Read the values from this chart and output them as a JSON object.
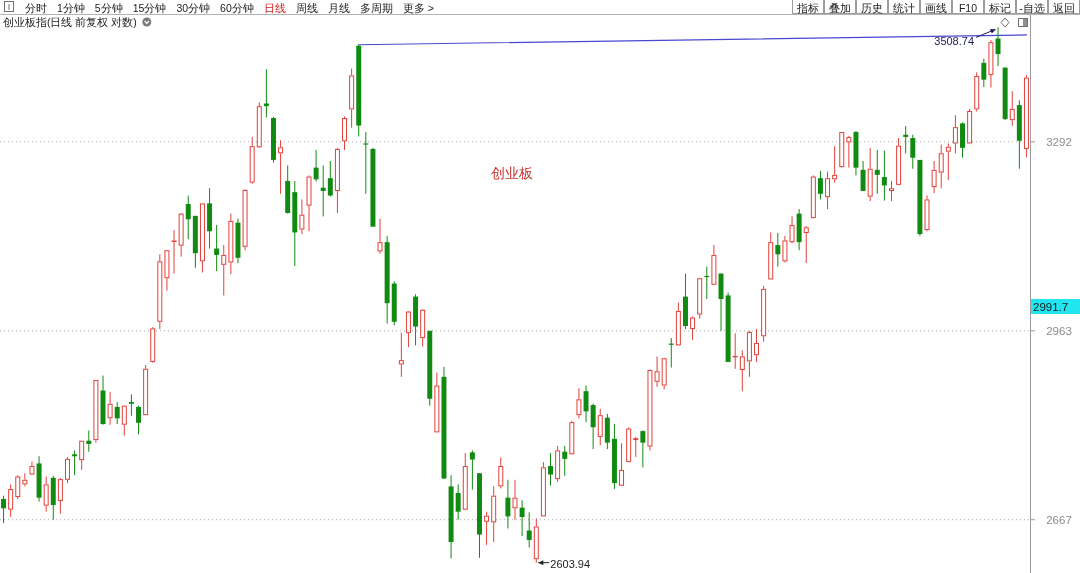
{
  "chart_data": {
    "type": "candlestick",
    "title": "创业板指(日线 前复权 对数)",
    "subtitle": "创业板",
    "categories": [
      null,
      null,
      null,
      null,
      null,
      null,
      null,
      null,
      null,
      null,
      null,
      null,
      null,
      null,
      null,
      null,
      null,
      null,
      null,
      null,
      null,
      null,
      null,
      null,
      null,
      null,
      null,
      null,
      null,
      null,
      null,
      null,
      null,
      null,
      null,
      null,
      null,
      null,
      null,
      null,
      null,
      null,
      null,
      null,
      null,
      null,
      null,
      null,
      null,
      null,
      null,
      null,
      null,
      null,
      null,
      null,
      null,
      null,
      null,
      null,
      null,
      null,
      null,
      null,
      null,
      null,
      null,
      null,
      null,
      null,
      null,
      null,
      null,
      null,
      null,
      null,
      null,
      null,
      null,
      null,
      null,
      null,
      null,
      null,
      null,
      null,
      null,
      null,
      null,
      null,
      null,
      null,
      null,
      null,
      null,
      null,
      null,
      null,
      null,
      null,
      null,
      null,
      null,
      null,
      null,
      null,
      null,
      null,
      null,
      null,
      null,
      null,
      null,
      null,
      null,
      null,
      null,
      null,
      null,
      null,
      null,
      null,
      null,
      null,
      null,
      null,
      null,
      null,
      null,
      null,
      null,
      null,
      null,
      null,
      null,
      null,
      null,
      null,
      null,
      null,
      null,
      null,
      null,
      null,
      null
    ],
    "ohlc": [
      [
        2698,
        2703,
        2662,
        2684
      ],
      [
        2682,
        2720,
        2671,
        2713
      ],
      [
        2701,
        2734,
        2698,
        2732
      ],
      [
        2720,
        2737,
        2717,
        2727
      ],
      [
        2735,
        2755,
        2734,
        2748
      ],
      [
        2752,
        2763,
        2694,
        2700
      ],
      [
        2688,
        2732,
        2679,
        2720
      ],
      [
        2730,
        2733,
        2667,
        2689
      ],
      [
        2695,
        2730,
        2676,
        2728
      ],
      [
        2727,
        2762,
        2722,
        2759
      ],
      [
        2766,
        2772,
        2734,
        2763
      ],
      [
        2757,
        2787,
        2742,
        2787
      ],
      [
        2787,
        2803,
        2770,
        2782
      ],
      [
        2788,
        2883,
        2784,
        2883
      ],
      [
        2866,
        2890,
        2812,
        2813
      ],
      [
        2822,
        2864,
        2812,
        2845
      ],
      [
        2840,
        2848,
        2813,
        2822
      ],
      [
        2812,
        2842,
        2795,
        2842
      ],
      [
        2848,
        2860,
        2826,
        2845
      ],
      [
        2840,
        2842,
        2797,
        2815
      ],
      [
        2827,
        2907,
        2827,
        2901
      ],
      [
        2912,
        2969,
        2911,
        2967
      ],
      [
        2978,
        3092,
        2966,
        3080
      ],
      [
        3051,
        3099,
        3030,
        3099
      ],
      [
        3115,
        3134,
        3059,
        3116
      ],
      [
        3107,
        3164,
        3088,
        3163
      ],
      [
        3180,
        3195,
        3118,
        3153
      ],
      [
        3159,
        3159,
        3069,
        3094
      ],
      [
        3080,
        3181,
        3061,
        3181
      ],
      [
        3181,
        3208,
        3102,
        3132
      ],
      [
        3102,
        3143,
        3063,
        3091
      ],
      [
        3074,
        3108,
        3022,
        3091
      ],
      [
        3078,
        3163,
        3058,
        3150
      ],
      [
        3147,
        3154,
        3077,
        3086
      ],
      [
        3105,
        3206,
        3099,
        3205
      ],
      [
        3218,
        3301,
        3216,
        3284
      ],
      [
        3282,
        3365,
        3281,
        3358
      ],
      [
        3363,
        3428,
        3337,
        3358
      ],
      [
        3336,
        3338,
        3254,
        3259
      ],
      [
        3271,
        3295,
        3198,
        3282
      ],
      [
        3221,
        3249,
        3163,
        3164
      ],
      [
        3201,
        3221,
        3072,
        3130
      ],
      [
        3135,
        3188,
        3127,
        3161
      ],
      [
        3177,
        3231,
        3132,
        3229
      ],
      [
        3245,
        3277,
        3220,
        3224
      ],
      [
        3209,
        3249,
        3158,
        3203
      ],
      [
        3226,
        3257,
        3193,
        3195
      ],
      [
        3203,
        3281,
        3164,
        3279
      ],
      [
        3293,
        3339,
        3277,
        3336
      ],
      [
        3352,
        3429,
        3318,
        3416
      ],
      [
        3473,
        3475,
        3302,
        3322
      ],
      [
        3289,
        3310,
        3198,
        3287
      ],
      [
        3279,
        3281,
        3140,
        3140
      ],
      [
        3097,
        3154,
        3093,
        3113
      ],
      [
        3113,
        3124,
        2975,
        3009
      ],
      [
        3042,
        3046,
        2972,
        2978
      ],
      [
        2908,
        2960,
        2888,
        2915
      ],
      [
        2959,
        2996,
        2936,
        2995
      ],
      [
        3020,
        3024,
        2939,
        2970
      ],
      [
        2951,
        2999,
        2937,
        2998
      ],
      [
        2963,
        2963,
        2842,
        2853
      ],
      [
        2800,
        2895,
        2800,
        2874
      ],
      [
        2888,
        2904,
        2728,
        2729
      ],
      [
        2717,
        2734,
        2610,
        2634
      ],
      [
        2707,
        2720,
        2667,
        2679
      ],
      [
        2682,
        2768,
        2681,
        2748
      ],
      [
        2769,
        2772,
        2712,
        2758
      ],
      [
        2737,
        2737,
        2611,
        2645
      ],
      [
        2664,
        2679,
        2630,
        2673
      ],
      [
        2663,
        2717,
        2634,
        2703
      ],
      [
        2717,
        2761,
        2714,
        2748
      ],
      [
        2700,
        2727,
        2654,
        2672
      ],
      [
        2684,
        2727,
        2667,
        2700
      ],
      [
        2685,
        2696,
        2643,
        2671
      ],
      [
        2651,
        2678,
        2626,
        2637
      ],
      [
        2609,
        2669,
        2603.94,
        2657
      ],
      [
        2672,
        2754,
        2672,
        2746
      ],
      [
        2748,
        2768,
        2718,
        2735
      ],
      [
        2728,
        2779,
        2724,
        2772
      ],
      [
        2770,
        2779,
        2733,
        2759
      ],
      [
        2766,
        2818,
        2766,
        2816
      ],
      [
        2827,
        2870,
        2822,
        2852
      ],
      [
        2865,
        2874,
        2816,
        2833
      ],
      [
        2843,
        2845,
        2774,
        2808
      ],
      [
        2793,
        2837,
        2780,
        2827
      ],
      [
        2823,
        2829,
        2774,
        2784
      ],
      [
        2790,
        2813,
        2713,
        2722
      ],
      [
        2718,
        2783,
        2718,
        2742
      ],
      [
        2754,
        2808,
        2754,
        2806
      ],
      [
        2788,
        2793,
        2762,
        2791
      ],
      [
        2802,
        2803,
        2746,
        2784
      ],
      [
        2778,
        2900,
        2772,
        2899
      ],
      [
        2880,
        2921,
        2872,
        2897
      ],
      [
        2874,
        2919,
        2868,
        2918
      ],
      [
        2942,
        2951,
        2903,
        2940
      ],
      [
        2939,
        3010,
        2939,
        2996
      ],
      [
        3020,
        3059,
        2966,
        2971
      ],
      [
        2966,
        2987,
        2948,
        2985
      ],
      [
        2990,
        3052,
        2983,
        3051
      ],
      [
        3055,
        3071,
        3016,
        3053
      ],
      [
        3040,
        3108,
        3040,
        3091
      ],
      [
        3059,
        3059,
        2963,
        3016
      ],
      [
        3022,
        3027,
        2912,
        2912
      ],
      [
        2920,
        2959,
        2901,
        2922
      ],
      [
        2899,
        2931,
        2865,
        2921
      ],
      [
        2913,
        2963,
        2888,
        2961
      ],
      [
        2923,
        2966,
        2912,
        2943
      ],
      [
        2954,
        3038,
        2945,
        3033
      ],
      [
        3049,
        3130,
        3049,
        3113
      ],
      [
        3108,
        3129,
        3071,
        3092
      ],
      [
        3080,
        3124,
        3078,
        3116
      ],
      [
        3113,
        3158,
        3111,
        3143
      ],
      [
        3163,
        3171,
        3099,
        3113
      ],
      [
        3129,
        3141,
        3077,
        3139
      ],
      [
        3155,
        3231,
        3155,
        3229
      ],
      [
        3226,
        3239,
        3188,
        3198
      ],
      [
        3192,
        3238,
        3171,
        3226
      ],
      [
        3224,
        3284,
        3218,
        3232
      ],
      [
        3246,
        3310,
        3245,
        3310
      ],
      [
        3291,
        3303,
        3245,
        3301
      ],
      [
        3310,
        3312,
        3231,
        3245
      ],
      [
        3241,
        3257,
        3203,
        3203
      ],
      [
        3193,
        3281,
        3185,
        3243
      ],
      [
        3241,
        3277,
        3198,
        3232
      ],
      [
        3228,
        3276,
        3186,
        3213
      ],
      [
        3203,
        3221,
        3185,
        3208
      ],
      [
        3214,
        3299,
        3214,
        3285
      ],
      [
        3305,
        3321,
        3271,
        3301
      ],
      [
        3299,
        3305,
        3243,
        3263
      ],
      [
        3259,
        3259,
        3124,
        3127
      ],
      [
        3134,
        3195,
        3132,
        3188
      ],
      [
        3210,
        3257,
        3199,
        3241
      ],
      [
        3236,
        3287,
        3208,
        3271
      ],
      [
        3274,
        3289,
        3223,
        3283
      ],
      [
        3289,
        3341,
        3271,
        3319
      ],
      [
        3326,
        3328,
        3263,
        3281
      ],
      [
        3289,
        3353,
        3289,
        3349
      ],
      [
        3352,
        3422,
        3348,
        3415
      ],
      [
        3440,
        3448,
        3394,
        3408
      ],
      [
        3417,
        3484,
        3393,
        3480
      ],
      [
        3487,
        3508.74,
        3434,
        3457
      ],
      [
        3431,
        3431,
        3332,
        3334
      ],
      [
        3332,
        3386,
        3321,
        3353
      ],
      [
        3360,
        3369,
        3243,
        3294
      ],
      [
        3279,
        3417,
        3264,
        3412
      ]
    ],
    "series": [
      {
        "type": "line",
        "color": "#4848d0",
        "values": [
          null,
          null,
          null,
          null,
          null,
          null,
          null,
          null,
          null,
          null,
          null,
          null,
          null,
          null,
          null,
          null,
          null,
          null,
          null,
          null,
          null,
          null,
          null,
          null,
          null,
          null,
          null,
          null,
          null,
          null,
          null,
          null,
          null,
          null,
          null,
          null,
          null,
          null,
          null,
          null,
          null,
          null,
          null,
          null,
          null,
          null,
          null,
          null,
          null,
          null,
          3475,
          null,
          null,
          null,
          null,
          null,
          null,
          null,
          null,
          null,
          null,
          null,
          null,
          null,
          null,
          null,
          null,
          null,
          null,
          null,
          null,
          null,
          null,
          null,
          null,
          null,
          null,
          null,
          null,
          null,
          null,
          null,
          null,
          null,
          null,
          null,
          null,
          null,
          null,
          null,
          null,
          null,
          null,
          null,
          null,
          null,
          null,
          null,
          null,
          null,
          null,
          null,
          null,
          null,
          null,
          null,
          null,
          null,
          null,
          null,
          null,
          null,
          null,
          null,
          null,
          null,
          null,
          null,
          null,
          null,
          null,
          null,
          null,
          null,
          null,
          null,
          null,
          null,
          null,
          null,
          null,
          null,
          null,
          null,
          null,
          null,
          null,
          null,
          null,
          null,
          null,
          null,
          null,
          null,
          3494
        ]
      }
    ],
    "log": true,
    "ylim": [
      2589,
      3535
    ],
    "yticks": [
      2667,
      2963,
      3292
    ],
    "grid": "y",
    "annotations": [
      "分时",
      "1分钟",
      "5分钟",
      "15分钟",
      "30分钟",
      "60分钟",
      "日线",
      "周线",
      "月线",
      "多周期",
      "更多 >",
      "指标",
      "叠加",
      "历史",
      "统计",
      "画线",
      "F10",
      "标记",
      "-自选",
      "返回",
      "2603.94",
      "3508.74",
      "2991.7"
    ]
  }
}
